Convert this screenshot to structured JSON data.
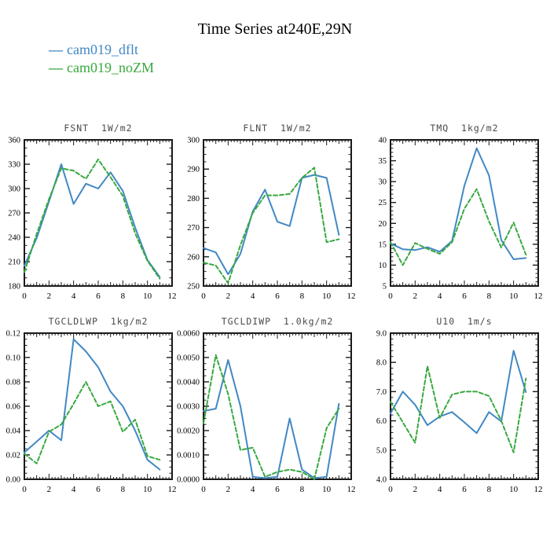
{
  "page": {
    "title": "Time Series at240E,29N",
    "background": "#ffffff"
  },
  "legend": {
    "position": "top-left",
    "items": [
      {
        "label": "cam019_dflt",
        "color": "#4288c4",
        "style": "solid"
      },
      {
        "label": "cam019_noZM",
        "color": "#38a93f",
        "style": "dashed"
      }
    ]
  },
  "chart_data": [
    {
      "type": "line",
      "title": "FSNT  1W/m2",
      "x": [
        0,
        1,
        2,
        3,
        4,
        5,
        6,
        7,
        8,
        9,
        10,
        11
      ],
      "xlim": [
        0,
        12
      ],
      "xticks": [
        0,
        2,
        4,
        6,
        8,
        10,
        12
      ],
      "ylim": [
        180,
        360
      ],
      "ytick_step": 30,
      "yminor_step": 10,
      "ydecimals": 0,
      "grid": false,
      "series": [
        {
          "name": "cam019_dflt",
          "color": "#4288c4",
          "dash": false,
          "values": [
            205,
            239,
            284,
            330,
            281,
            306,
            300,
            320,
            297,
            252,
            212,
            191
          ]
        },
        {
          "name": "cam019_noZM",
          "color": "#38a93f",
          "dash": true,
          "values": [
            197,
            244,
            287,
            325,
            322,
            312,
            336,
            314,
            291,
            245,
            211,
            189
          ]
        }
      ]
    },
    {
      "type": "line",
      "title": "FLNT  1W/m2",
      "x": [
        0,
        1,
        2,
        3,
        4,
        5,
        6,
        7,
        8,
        9,
        10,
        11
      ],
      "xlim": [
        0,
        12
      ],
      "xticks": [
        0,
        2,
        4,
        6,
        8,
        10,
        12
      ],
      "ylim": [
        250,
        300
      ],
      "ytick_step": 10,
      "yminor_step": 2.5,
      "ydecimals": 0,
      "grid": false,
      "series": [
        {
          "name": "cam019_dflt",
          "color": "#4288c4",
          "dash": false,
          "values": [
            263,
            261.5,
            254,
            261,
            275.5,
            283,
            272,
            270.5,
            287,
            288,
            287,
            267.5
          ]
        },
        {
          "name": "cam019_noZM",
          "color": "#38a93f",
          "dash": true,
          "values": [
            258,
            257,
            251,
            264,
            275,
            281,
            281,
            281.5,
            287,
            290.5,
            265,
            266
          ]
        }
      ]
    },
    {
      "type": "line",
      "title": "TMQ  1kg/m2",
      "x": [
        0,
        1,
        2,
        3,
        4,
        5,
        6,
        7,
        8,
        9,
        10,
        11
      ],
      "xlim": [
        0,
        12
      ],
      "xticks": [
        0,
        2,
        4,
        6,
        8,
        10,
        12
      ],
      "ylim": [
        5,
        40
      ],
      "ytick_step": 5,
      "yminor_step": 1,
      "ydecimals": 0,
      "grid": false,
      "series": [
        {
          "name": "cam019_dflt",
          "color": "#4288c4",
          "dash": false,
          "values": [
            15.2,
            13.8,
            13.6,
            14.3,
            13.2,
            15.8,
            29,
            38,
            31.5,
            16,
            11.4,
            11.7
          ]
        },
        {
          "name": "cam019_noZM",
          "color": "#38a93f",
          "dash": true,
          "values": [
            15.5,
            10,
            15.3,
            13.9,
            12.7,
            15.5,
            23.5,
            28.2,
            20.5,
            14.2,
            20.2,
            12.5
          ]
        }
      ]
    },
    {
      "type": "line",
      "title": "TGCLDLWP  1kg/m2",
      "x": [
        0,
        1,
        2,
        3,
        4,
        5,
        6,
        7,
        8,
        9,
        10,
        11
      ],
      "xlim": [
        0,
        12
      ],
      "xticks": [
        0,
        2,
        4,
        6,
        8,
        10,
        12
      ],
      "ylim": [
        0,
        0.12
      ],
      "ytick_step": 0.02,
      "yminor_step": 0.005,
      "ydecimals": 2,
      "grid": false,
      "series": [
        {
          "name": "cam019_dflt",
          "color": "#4288c4",
          "dash": false,
          "values": [
            0.022,
            0.031,
            0.04,
            0.032,
            0.115,
            0.105,
            0.092,
            0.072,
            0.06,
            0.04,
            0.016,
            0.008
          ]
        },
        {
          "name": "cam019_noZM",
          "color": "#38a93f",
          "dash": true,
          "values": [
            0.021,
            0.013,
            0.039,
            0.045,
            0.062,
            0.08,
            0.06,
            0.064,
            0.039,
            0.049,
            0.019,
            0.016
          ]
        }
      ]
    },
    {
      "type": "line",
      "title": "TGCLDIWP  1.0kg/m2",
      "x": [
        0,
        1,
        2,
        3,
        4,
        5,
        6,
        7,
        8,
        9,
        10,
        11
      ],
      "xlim": [
        0,
        12
      ],
      "xticks": [
        0,
        2,
        4,
        6,
        8,
        10,
        12
      ],
      "ylim": [
        0,
        0.006
      ],
      "ytick_step": 0.001,
      "yminor_step": 0.00025,
      "ydecimals": 4,
      "grid": false,
      "series": [
        {
          "name": "cam019_dflt",
          "color": "#4288c4",
          "dash": false,
          "values": [
            0.0028,
            0.0029,
            0.0049,
            0.003,
            0.0001,
            5e-05,
            0.0001,
            0.0025,
            0.0004,
            5e-05,
            0.0001,
            0.0031
          ]
        },
        {
          "name": "cam019_noZM",
          "color": "#38a93f",
          "dash": true,
          "values": [
            0.0023,
            0.0051,
            0.0035,
            0.0012,
            0.0013,
            0.0001,
            0.0003,
            0.0004,
            0.0003,
            0.0,
            0.0021,
            0.0029
          ]
        }
      ]
    },
    {
      "type": "line",
      "title": "U10  1m/s",
      "x": [
        0,
        1,
        2,
        3,
        4,
        5,
        6,
        7,
        8,
        9,
        10,
        11
      ],
      "xlim": [
        0,
        12
      ],
      "xticks": [
        0,
        2,
        4,
        6,
        8,
        10,
        12
      ],
      "ylim": [
        4,
        9
      ],
      "ytick_step": 1,
      "yminor_step": 0.2,
      "ydecimals": 1,
      "grid": false,
      "series": [
        {
          "name": "cam019_dflt",
          "color": "#4288c4",
          "dash": false,
          "values": [
            6.25,
            7.0,
            6.55,
            5.85,
            6.15,
            6.3,
            5.95,
            5.58,
            6.3,
            5.98,
            8.4,
            6.98
          ]
        },
        {
          "name": "cam019_noZM",
          "color": "#38a93f",
          "dash": true,
          "values": [
            6.65,
            5.95,
            5.25,
            7.87,
            6.1,
            6.9,
            7.0,
            7.0,
            6.85,
            6.0,
            4.92,
            7.45
          ]
        }
      ]
    }
  ]
}
